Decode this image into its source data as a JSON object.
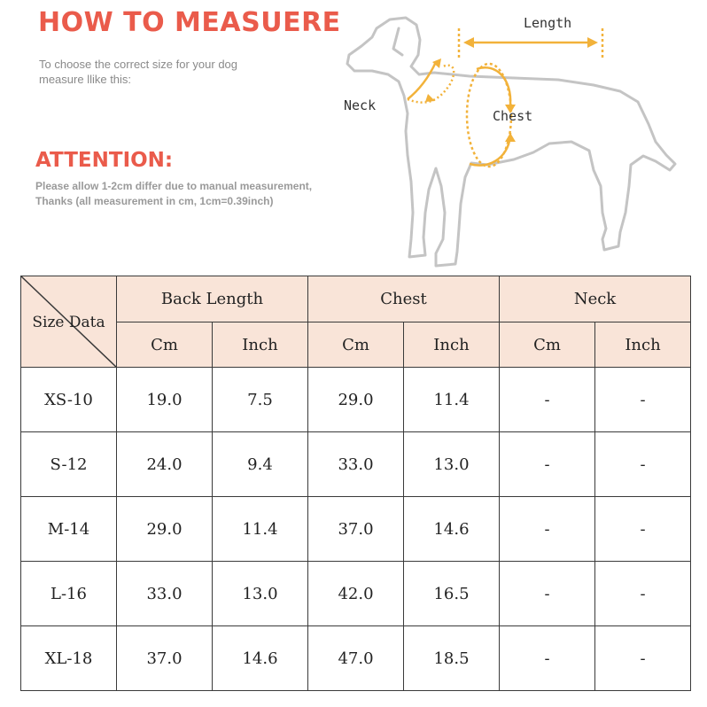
{
  "header": {
    "title": "HOW TO MEASUERE",
    "subtitle_lines": [
      "To choose the correct size for your dog",
      "measure llike this:"
    ],
    "attention": "ATTENTION:",
    "note_lines": [
      "Please allow 1-2cm differ due to manual measurement,",
      "Thanks (all measurement in cm, 1cm=0.39inch)"
    ]
  },
  "diagram": {
    "length_label": "Length",
    "neck_label": "Neck",
    "chest_label": "Chest",
    "arrow_color": "#f2b23a",
    "outline_color": "#c4c4c4"
  },
  "table": {
    "corner_label": "Size Data",
    "groups": [
      "Back Length",
      "Chest",
      "Neck"
    ],
    "units": [
      "Cm",
      "Inch",
      "Cm",
      "Inch",
      "Cm",
      "Inch"
    ],
    "rows": [
      {
        "size": "XS-10",
        "values": [
          "19.0",
          "7.5",
          "29.0",
          "11.4",
          "-",
          "-"
        ]
      },
      {
        "size": "S-12",
        "values": [
          "24.0",
          "9.4",
          "33.0",
          "13.0",
          "-",
          "-"
        ]
      },
      {
        "size": "M-14",
        "values": [
          "29.0",
          "11.4",
          "37.0",
          "14.6",
          "-",
          "-"
        ]
      },
      {
        "size": "L-16",
        "values": [
          "33.0",
          "13.0",
          "42.0",
          "16.5",
          "-",
          "-"
        ]
      },
      {
        "size": "XL-18",
        "values": [
          "37.0",
          "14.6",
          "47.0",
          "18.5",
          "-",
          "-"
        ]
      }
    ],
    "header_bg": "#f9e4d8",
    "border_color": "#3a3a3a"
  }
}
